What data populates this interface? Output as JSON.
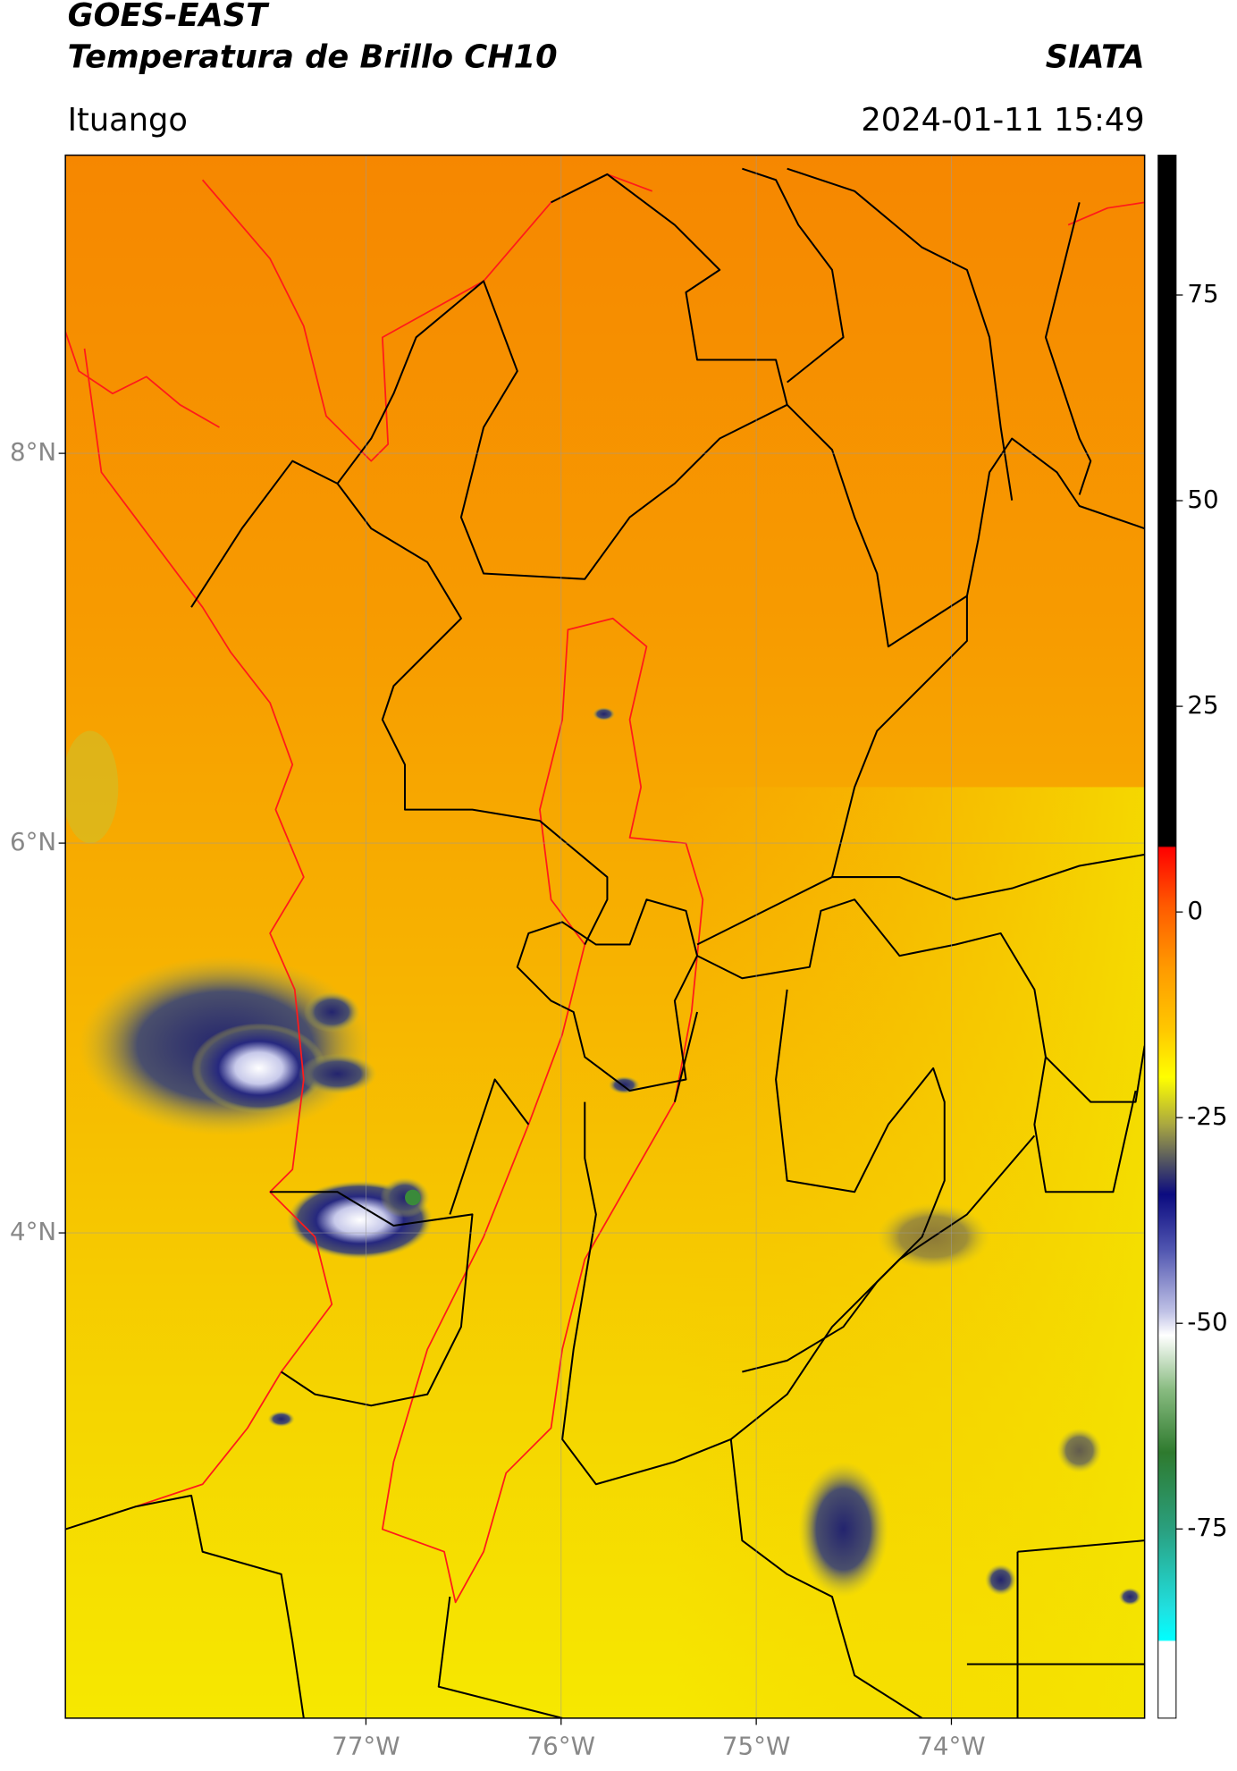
{
  "header": {
    "title": "GOES-EAST",
    "subtitle": "Temperatura de Brillo CH10",
    "source": "SIATA",
    "location": "Ituango",
    "datetime": "2024-01-11 15:49"
  },
  "map": {
    "xlim": [
      -78.54,
      -73.01
    ],
    "ylim": [
      1.51,
      9.53
    ],
    "xticks": [
      {
        "value": -77,
        "label": "77°W"
      },
      {
        "value": -76,
        "label": "76°W"
      },
      {
        "value": -75,
        "label": "75°W"
      },
      {
        "value": -74,
        "label": "74°W"
      }
    ],
    "yticks": [
      {
        "value": 8,
        "label": "8°N"
      },
      {
        "value": 6,
        "label": "6°N"
      },
      {
        "value": 4,
        "label": "4°N"
      }
    ],
    "grid": true
  },
  "colorbar": {
    "lim": [
      -98,
      92
    ],
    "ticks": [
      75,
      50,
      25,
      0,
      -25,
      -50,
      -75
    ]
  }
}
